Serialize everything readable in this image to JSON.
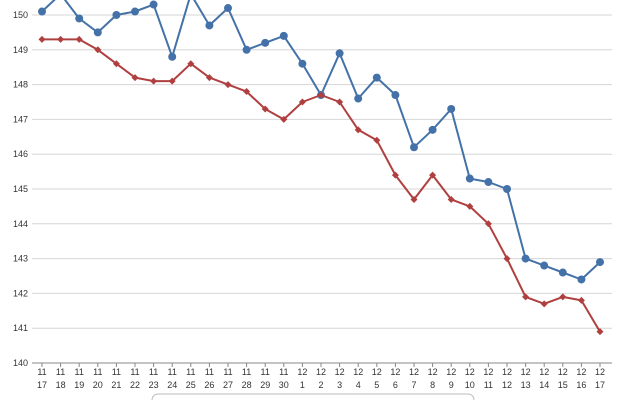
{
  "chart_data": {
    "type": "line",
    "title": "",
    "xlabel": "",
    "ylabel": "",
    "ylim": [
      140,
      150
    ],
    "y_ticks": [
      140,
      141,
      142,
      143,
      144,
      145,
      146,
      147,
      148,
      149,
      150
    ],
    "grid": true,
    "categories": [
      [
        "11",
        "17"
      ],
      [
        "11",
        "18"
      ],
      [
        "11",
        "19"
      ],
      [
        "11",
        "20"
      ],
      [
        "11",
        "21"
      ],
      [
        "11",
        "22"
      ],
      [
        "11",
        "23"
      ],
      [
        "11",
        "24"
      ],
      [
        "11",
        "25"
      ],
      [
        "11",
        "26"
      ],
      [
        "11",
        "27"
      ],
      [
        "11",
        "28"
      ],
      [
        "11",
        "29"
      ],
      [
        "11",
        "30"
      ],
      [
        "12",
        "1"
      ],
      [
        "12",
        "2"
      ],
      [
        "12",
        "3"
      ],
      [
        "12",
        "4"
      ],
      [
        "12",
        "5"
      ],
      [
        "12",
        "6"
      ],
      [
        "12",
        "7"
      ],
      [
        "12",
        "8"
      ],
      [
        "12",
        "9"
      ],
      [
        "12",
        "10"
      ],
      [
        "12",
        "11"
      ],
      [
        "12",
        "12"
      ],
      [
        "12",
        "13"
      ],
      [
        "12",
        "14"
      ],
      [
        "12",
        "15"
      ],
      [
        "12",
        "16"
      ],
      [
        "12",
        "17"
      ]
    ],
    "series": [
      {
        "color": "#4472a8",
        "marker": "circle",
        "values": [
          150.1,
          150.6,
          149.9,
          149.5,
          150.0,
          150.1,
          150.3,
          148.8,
          150.6,
          149.7,
          150.2,
          149.0,
          149.2,
          149.4,
          148.6,
          147.7,
          148.9,
          147.6,
          148.2,
          147.7,
          146.2,
          146.7,
          147.3,
          145.3,
          145.2,
          145.0,
          143.0,
          142.8,
          142.6,
          142.4,
          142.9
        ]
      },
      {
        "color": "#b04040",
        "marker": "diamond",
        "values": [
          149.3,
          149.3,
          149.3,
          149.0,
          148.6,
          148.2,
          148.1,
          148.1,
          148.6,
          148.2,
          148.0,
          147.8,
          147.3,
          147.0,
          147.5,
          147.7,
          147.5,
          146.7,
          146.4,
          145.4,
          144.7,
          145.4,
          144.7,
          144.5,
          144.0,
          143.0,
          141.9,
          141.7,
          141.9,
          141.8,
          140.9
        ]
      }
    ]
  }
}
